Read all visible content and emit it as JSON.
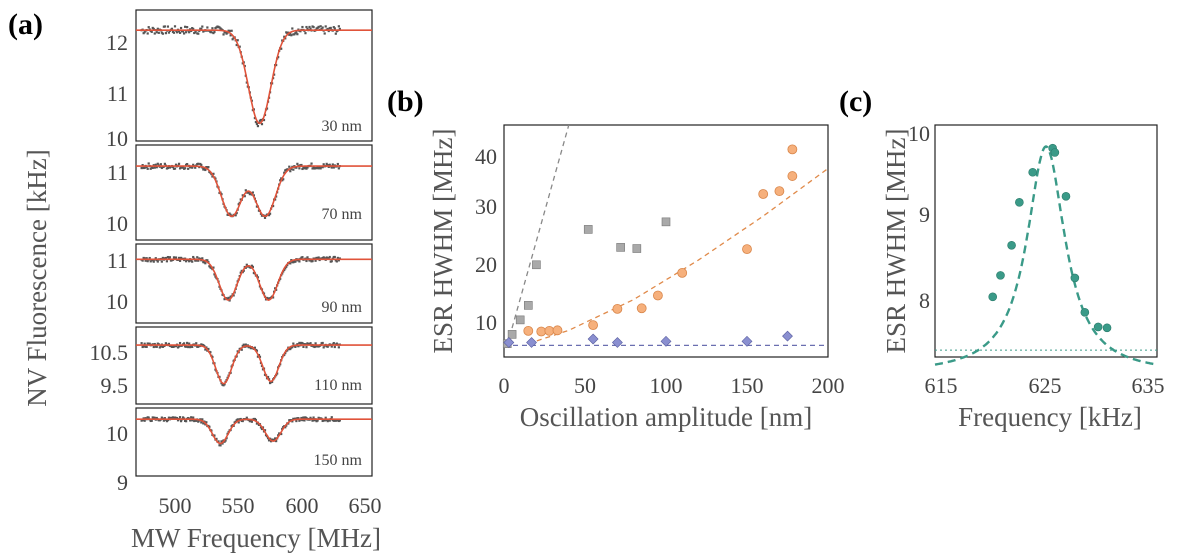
{
  "colors": {
    "fit_red": "#e0533a",
    "dots_gray": "#555555",
    "square_gray": "#a9a9a9",
    "circle_orange": "#f6b07c",
    "diamond_blue": "#8a8fd0",
    "teal": "#3a9a88"
  },
  "panel_a": {
    "label": "(a)",
    "ylabel": "NV Fluorescence [kHz]",
    "xlabel": "MW Frequency [MHz]",
    "xticks": [
      "500",
      "550",
      "600",
      "650"
    ],
    "subpanels": [
      {
        "amplitude_label": "30 nm",
        "yticks": [
          "12",
          "11",
          "10"
        ]
      },
      {
        "amplitude_label": "70 nm",
        "yticks": [
          "11",
          "10"
        ]
      },
      {
        "amplitude_label": "90 nm",
        "yticks": [
          "11",
          "10"
        ]
      },
      {
        "amplitude_label": "110 nm",
        "yticks": [
          "10.5",
          "9.5"
        ]
      },
      {
        "amplitude_label": "150 nm",
        "yticks": [
          "10",
          "9"
        ]
      }
    ]
  },
  "panel_b": {
    "label": "(b)",
    "ylabel": "ESR HWHM [MHz]",
    "xlabel": "Oscillation amplitude [nm]",
    "xticks": [
      "0",
      "50",
      "100",
      "150",
      "200"
    ],
    "yticks": [
      "10",
      "20",
      "30",
      "40"
    ]
  },
  "panel_c": {
    "label": "(c)",
    "ylabel": "ESR HWHM [MHz]",
    "xlabel": "Frequency [kHz]",
    "xticks": [
      "615",
      "625",
      "635"
    ],
    "yticks": [
      "8",
      "9",
      "10"
    ]
  },
  "chart_data": [
    {
      "type": "scatter",
      "panel": "a",
      "xlim": [
        470,
        680
      ],
      "x_range_data": [
        475,
        652
      ],
      "series": [
        {
          "name": "30 nm",
          "ylim": [
            10,
            12.6
          ],
          "baseline": 12.2,
          "dips": [
            {
              "center": 580,
              "depth": 1.85,
              "width": 10
            }
          ],
          "fit_min": 10.35
        },
        {
          "name": "70 nm",
          "ylim": [
            9.7,
            11.5
          ],
          "baseline": 11.1,
          "dips": [
            {
              "center": 555,
              "depth": 0.95,
              "width": 9
            },
            {
              "center": 585,
              "depth": 0.95,
              "width": 9
            }
          ],
          "fit_min": 10.15
        },
        {
          "name": "90 nm",
          "ylim": [
            9.6,
            11.15
          ],
          "baseline": 10.85,
          "dips": [
            {
              "center": 552,
              "depth": 0.8,
              "width": 8
            },
            {
              "center": 588,
              "depth": 0.8,
              "width": 8
            }
          ],
          "fit_min": 10.05
        },
        {
          "name": "110 nm",
          "ylim": [
            9.1,
            10.8
          ],
          "baseline": 10.4,
          "dips": [
            {
              "center": 548,
              "depth": 0.85,
              "width": 7
            },
            {
              "center": 590,
              "depth": 0.8,
              "width": 7
            }
          ],
          "fit_min": 9.55
        },
        {
          "name": "150 nm",
          "ylim": [
            8.9,
            10.3
          ],
          "baseline": 10.07,
          "dips": [
            {
              "center": 545,
              "depth": 0.5,
              "width": 7
            },
            {
              "center": 592,
              "depth": 0.45,
              "width": 7
            }
          ],
          "fit_min": 9.55
        }
      ]
    },
    {
      "type": "scatter",
      "panel": "b",
      "xlim": [
        0,
        200
      ],
      "ylim": [
        5,
        45
      ],
      "series": [
        {
          "marker": "square",
          "color": "#a9a9a9",
          "x": [
            2,
            5,
            10,
            15,
            20,
            52,
            72,
            82,
            100
          ],
          "y": [
            7.3,
            8.9,
            11.4,
            13.9,
            20.9,
            27,
            23.9,
            23.7,
            28.3
          ]
        },
        {
          "marker": "circle",
          "color": "#f6b07c",
          "x": [
            15,
            23,
            28,
            33,
            55,
            70,
            85,
            95,
            110,
            150,
            160,
            170,
            178,
            178
          ],
          "y": [
            9.5,
            9.4,
            9.5,
            9.6,
            10.5,
            13.3,
            13.4,
            15.6,
            19.5,
            23.6,
            33.1,
            33.6,
            36.2,
            40.8
          ]
        },
        {
          "marker": "diamond",
          "color": "#8a8fd0",
          "x": [
            3,
            17,
            55,
            70,
            100,
            150,
            175
          ],
          "y": [
            7.5,
            7.5,
            8.1,
            7.5,
            7.7,
            7.7,
            8.6
          ]
        }
      ],
      "lines": [
        {
          "style": "dashed",
          "color": "#888888",
          "points": [
            [
              2,
              7
            ],
            [
              40,
              45
            ]
          ]
        },
        {
          "style": "dashed",
          "color": "#e08a4a",
          "points": [
            [
              15,
              7.3
            ],
            [
              40,
              9.6
            ],
            [
              80,
              14.9
            ],
            [
              120,
              21.7
            ],
            [
              160,
              29.3
            ],
            [
              200,
              37.5
            ]
          ]
        },
        {
          "style": "dashed",
          "color": "#6a6fb0",
          "points": [
            [
              0,
              7
            ],
            [
              200,
              7
            ]
          ]
        }
      ]
    },
    {
      "type": "scatter",
      "panel": "c",
      "xlim": [
        615,
        635
      ],
      "ylim": [
        7.3,
        10
      ],
      "series": [
        {
          "marker": "circle",
          "color": "#3a9a88",
          "x": [
            620.2,
            620.9,
            621.9,
            622.6,
            623.8,
            625.6,
            625.8,
            626.8,
            627.6,
            628.5,
            629.7,
            630.5
          ],
          "y": [
            8.0,
            8.25,
            8.6,
            9.1,
            9.45,
            9.73,
            9.68,
            9.17,
            8.22,
            7.82,
            7.65,
            7.64
          ]
        }
      ],
      "lines": [
        {
          "style": "dashed",
          "color": "#3a9a88",
          "shape": "lorentzian",
          "center": 625,
          "peak": 9.75,
          "offset": 7.1,
          "hwhm": 2.1
        },
        {
          "style": "dotted",
          "color": "#3a9a88",
          "points": [
            [
              615,
              7.38
            ],
            [
              635,
              7.38
            ]
          ]
        }
      ]
    }
  ]
}
